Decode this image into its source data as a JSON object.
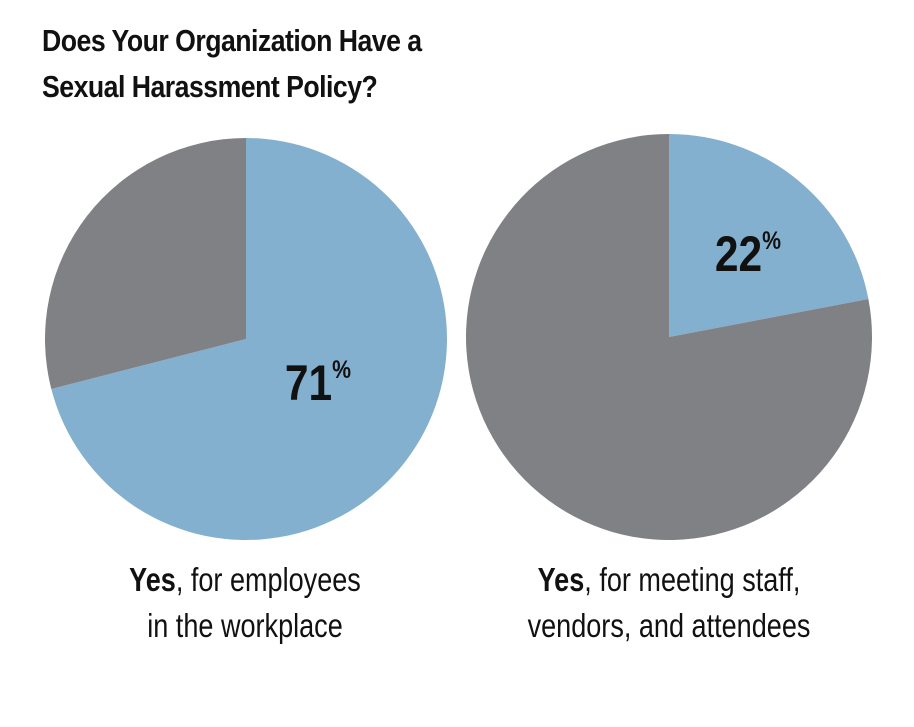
{
  "title_lines": [
    "Does Your Organization Have a",
    "Sexual Harassment Policy?"
  ],
  "colors": {
    "yes": "#84b0cf",
    "other": "#808185"
  },
  "chart_data": [
    {
      "type": "pie",
      "slices": [
        {
          "label": "Yes",
          "value": 71,
          "color": "#84b0cf"
        },
        {
          "label": "",
          "value": 29,
          "color": "#808185"
        }
      ],
      "data_label": {
        "number": "71",
        "unit": "%"
      },
      "caption": {
        "strong": "Yes",
        "line1_rest": ", for employees",
        "line2": "in the workplace"
      }
    },
    {
      "type": "pie",
      "slices": [
        {
          "label": "Yes",
          "value": 22,
          "color": "#84b0cf"
        },
        {
          "label": "",
          "value": 78,
          "color": "#808185"
        }
      ],
      "data_label": {
        "number": "22",
        "unit": "%"
      },
      "caption": {
        "strong": "Yes",
        "line1_rest": ", for meeting staff,",
        "line2": "vendors, and attendees"
      }
    }
  ]
}
